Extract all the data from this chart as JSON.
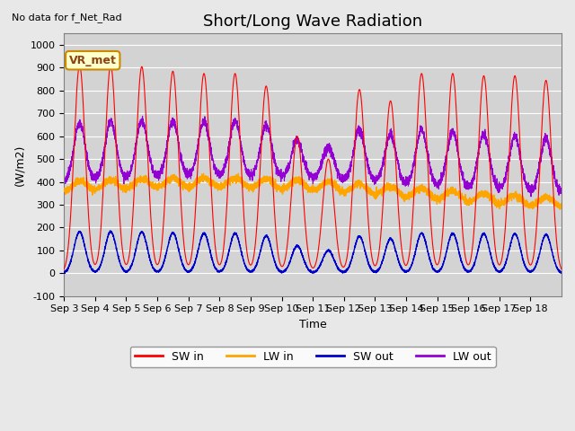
{
  "title": "Short/Long Wave Radiation",
  "xlabel": "Time",
  "ylabel": "(W/m2)",
  "ylim": [
    -100,
    1050
  ],
  "yticks": [
    -100,
    0,
    100,
    200,
    300,
    400,
    500,
    600,
    700,
    800,
    900,
    1000
  ],
  "x_labels": [
    "Sep 3",
    "Sep 4",
    "Sep 5",
    "Sep 6",
    "Sep 7",
    "Sep 8",
    "Sep 9",
    "Sep 10",
    "Sep 11",
    "Sep 12",
    "Sep 13",
    "Sep 14",
    "Sep 15",
    "Sep 16",
    "Sep 17",
    "Sep 18"
  ],
  "annotation_text": "No data for f_Net_Rad",
  "box_label": "VR_met",
  "legend_entries": [
    "SW in",
    "LW in",
    "SW out",
    "LW out"
  ],
  "legend_colors": [
    "#ff0000",
    "#ffa500",
    "#0000cd",
    "#9400d3"
  ],
  "sw_in_color": "#ff0000",
  "lw_in_color": "#ffa500",
  "sw_out_color": "#0000cd",
  "lw_out_color": "#9400d3",
  "background_color": "#e8e8e8",
  "plot_bg_color": "#d3d3d3",
  "title_fontsize": 13,
  "label_fontsize": 9,
  "tick_fontsize": 8,
  "n_days": 16,
  "points_per_day": 288,
  "sw_in_peaks": [
    910,
    910,
    905,
    885,
    875,
    875,
    820,
    600,
    500,
    805,
    755,
    875,
    875,
    865,
    865,
    845
  ]
}
